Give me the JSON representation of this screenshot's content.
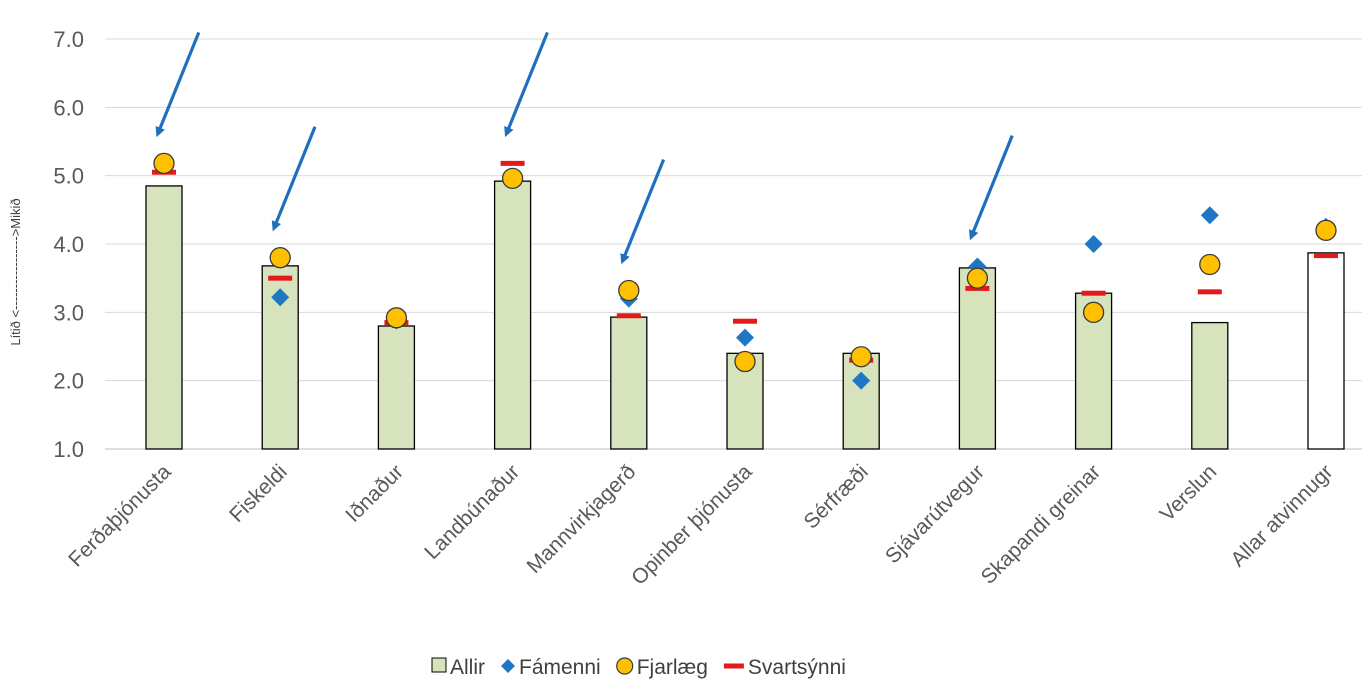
{
  "chart_data": {
    "type": "bar",
    "title": "",
    "xlabel": "",
    "ylabel": "Lítið <----------------->Mikið",
    "ylim": [
      1.0,
      7.0
    ],
    "yticks": [
      "1.0",
      "2.0",
      "3.0",
      "4.0",
      "5.0",
      "6.0",
      "7.0"
    ],
    "grid": true,
    "legend_position": "bottom",
    "categories": [
      "Ferðaþjónusta",
      "Fiskeldi",
      "Iðnaður",
      "Landbúnaður",
      "Mannvirkjagerð",
      "Opinber þjónusta",
      "Sérfræði",
      "Sjávarútvegur",
      "Skapandi greinar",
      "Verslun",
      "Allar atvinnugr"
    ],
    "highlighted_categories": [
      "Ferðaþjónusta",
      "Fiskeldi",
      "Landbúnaður",
      "Mannvirkjagerð",
      "Sjávarútvegur"
    ],
    "series": [
      {
        "name": "Allir",
        "kind": "bar",
        "color": "#d6e3bc",
        "values": [
          4.85,
          3.68,
          2.8,
          4.92,
          2.93,
          2.4,
          2.4,
          3.65,
          3.28,
          2.85,
          3.87
        ]
      },
      {
        "name": "Fámenni",
        "kind": "diamond",
        "color": "#1f77c4",
        "values": [
          null,
          3.22,
          2.88,
          null,
          3.2,
          2.63,
          2.0,
          3.67,
          4.0,
          4.42,
          4.25
        ]
      },
      {
        "name": "Fjarlæg",
        "kind": "circle",
        "color": "#ffc000",
        "values": [
          5.18,
          3.8,
          2.92,
          4.96,
          3.32,
          2.28,
          2.35,
          3.5,
          3.0,
          3.7,
          4.2
        ]
      },
      {
        "name": "Svartsýnni",
        "kind": "dash",
        "color": "#e31a1c",
        "values": [
          5.05,
          3.5,
          2.85,
          5.18,
          2.95,
          2.87,
          2.3,
          3.35,
          3.28,
          3.3,
          3.83
        ]
      }
    ]
  },
  "colors": {
    "bar_fill": "#d6e3bc",
    "bar_fill_total": "#ffffff",
    "arrow": "#1f6fbd",
    "grid": "#d9d9d9"
  }
}
